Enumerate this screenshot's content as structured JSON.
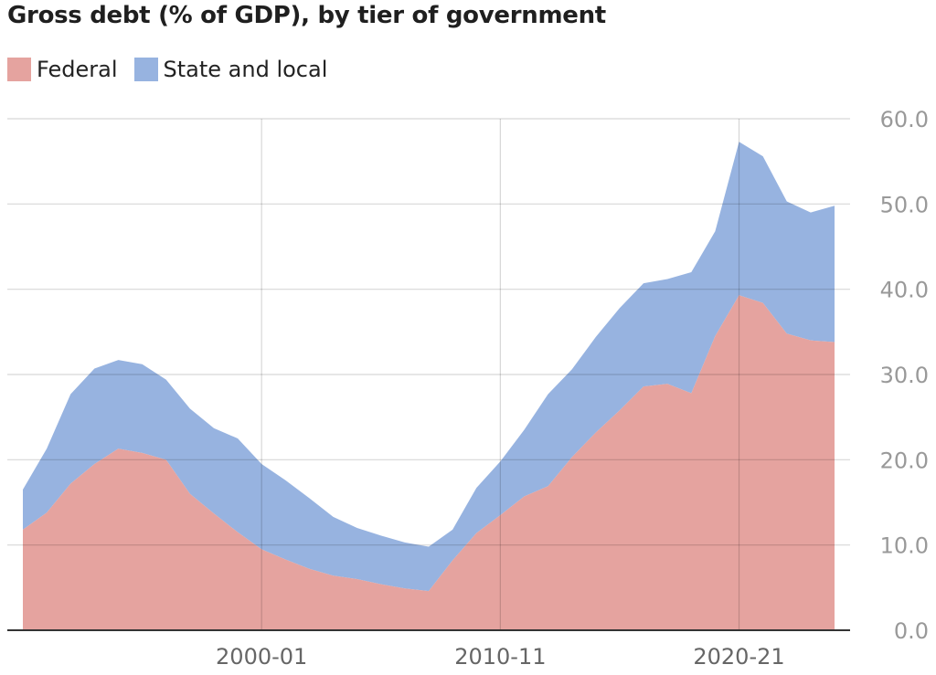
{
  "header": {
    "title": "Gross debt (% of GDP), by tier of government"
  },
  "legend": {
    "items": [
      {
        "label": "Federal",
        "color": "#e5a39f"
      },
      {
        "label": "State and local",
        "color": "#97b3e0"
      }
    ]
  },
  "chart_data": {
    "type": "area",
    "stacked": true,
    "title": "Gross debt (% of GDP), by tier of government",
    "xlabel": "",
    "ylabel": "",
    "ylim": [
      0,
      60
    ],
    "y_ticks": [
      "0.0",
      "10.0",
      "20.0",
      "30.0",
      "40.0",
      "50.0",
      "60.0"
    ],
    "x_ticks": [
      "2000-01",
      "2010-11",
      "2020-21"
    ],
    "x": [
      "1990-91",
      "1991-92",
      "1992-93",
      "1993-94",
      "1994-95",
      "1995-96",
      "1996-97",
      "1997-98",
      "1998-99",
      "1999-00",
      "2000-01",
      "2001-02",
      "2002-03",
      "2003-04",
      "2004-05",
      "2005-06",
      "2006-07",
      "2007-08",
      "2008-09",
      "2009-10",
      "2010-11",
      "2011-12",
      "2012-13",
      "2013-14",
      "2014-15",
      "2015-16",
      "2016-17",
      "2017-18",
      "2018-19",
      "2019-20",
      "2020-21",
      "2021-22",
      "2022-23",
      "2023-24",
      "2024-25"
    ],
    "series": [
      {
        "name": "Federal",
        "color": "#e5a39f",
        "values": [
          11.8,
          13.8,
          17.2,
          19.5,
          21.3,
          20.8,
          20.0,
          16.0,
          13.7,
          11.5,
          9.5,
          8.3,
          7.2,
          6.4,
          6.0,
          5.4,
          4.9,
          4.6,
          8.2,
          11.4,
          13.5,
          15.7,
          16.9,
          20.3,
          23.2,
          25.8,
          28.6,
          28.9,
          27.8,
          34.5,
          39.3,
          38.4,
          34.8,
          34.0,
          33.8
        ]
      },
      {
        "name": "State and local",
        "color": "#97b3e0",
        "values": [
          4.7,
          7.5,
          10.5,
          11.2,
          10.4,
          10.4,
          9.4,
          10.0,
          10.0,
          11.0,
          10.0,
          9.3,
          8.3,
          6.9,
          6.0,
          5.7,
          5.4,
          5.2,
          3.6,
          5.3,
          6.3,
          7.8,
          10.8,
          10.3,
          11.2,
          12.0,
          12.1,
          12.3,
          14.2,
          12.3,
          18.0,
          17.2,
          15.5,
          15.0,
          16.0
        ]
      }
    ],
    "grid": true,
    "legend_position": "top-left"
  }
}
